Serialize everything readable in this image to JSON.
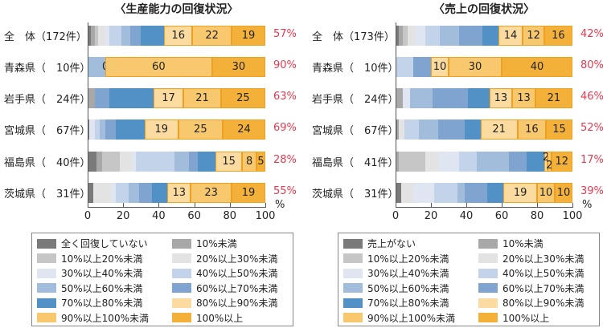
{
  "colors": [
    "#7a7a7a",
    "#a8a8a8",
    "#c6c6c6",
    "#e3e3e3",
    "#dfe6f2",
    "#c3d3e9",
    "#a2bddc",
    "#7fa4cf",
    "#5291c6",
    "#fbdba0",
    "#f8c86e",
    "#f4b13a"
  ],
  "accent_rate_color": "#e8384f",
  "charts": [
    {
      "type": "bar",
      "orientation": "horizontal-stacked",
      "title": "〈生産能力の回復状況〉",
      "xlim": [
        0,
        100
      ],
      "xticks": [
        "0",
        "20",
        "40",
        "60",
        "80",
        "100"
      ],
      "xunit": "%",
      "legend": [
        "全く回復していない",
        "10%未満",
        "10%以上20%未満",
        "20%以上30%未満",
        "30%以上40%未満",
        "40%以上50%未満",
        "50%以上60%未満",
        "60%以上70%未満",
        "70%以上80%未満",
        "80%以上90%未満",
        "90%以上100%未満",
        "100%以上"
      ],
      "rows": [
        {
          "label": "全　体（172件）",
          "values": [
            2,
            2,
            2,
            4,
            2,
            7,
            5,
            6,
            13,
            16,
            22,
            19
          ],
          "rate": "57%"
        },
        {
          "label": "青森県（　10件）",
          "values": [
            0,
            0,
            0,
            0,
            0,
            0,
            10,
            0,
            0,
            0,
            60,
            30
          ],
          "rate": "90%"
        },
        {
          "label": "岩手県（　24件）",
          "values": [
            0,
            4,
            0,
            0,
            0,
            0,
            0,
            8,
            25,
            17,
            21,
            25
          ],
          "rate": "63%"
        },
        {
          "label": "宮城県（　67件）",
          "values": [
            1,
            0,
            0,
            0,
            3,
            3,
            3,
            6,
            16,
            19,
            25,
            24
          ],
          "rate": "69%"
        },
        {
          "label": "福島県（　40件）",
          "values": [
            5,
            3,
            10,
            7,
            2,
            22,
            8,
            5,
            10,
            15,
            8,
            5
          ],
          "rate": "28%"
        },
        {
          "label": "茨城県（　31件）",
          "values": [
            3,
            0,
            0,
            10,
            3,
            7,
            6,
            7,
            9,
            13,
            23,
            19
          ],
          "rate": "55%"
        }
      ]
    },
    {
      "type": "bar",
      "orientation": "horizontal-stacked",
      "title": "〈売上の回復状況〉",
      "xlim": [
        0,
        100
      ],
      "xticks": [
        "0",
        "20",
        "40",
        "60",
        "80",
        "100"
      ],
      "xunit": "%",
      "legend": [
        "売上がない",
        "10%未満",
        "10%以上20%未満",
        "20%以上30%未満",
        "30%以上40%未満",
        "40%以上50%未満",
        "50%以上60%未満",
        "60%以上70%未満",
        "70%以上80%未満",
        "80%以上90%未満",
        "90%以上100%未満",
        "100%以上"
      ],
      "rows": [
        {
          "label": "全　体（173件）",
          "values": [
            2,
            2,
            3,
            4,
            6,
            8,
            11,
            13,
            9,
            14,
            12,
            16
          ],
          "rate": "42%"
        },
        {
          "label": "青森県（　10件）",
          "values": [
            0,
            0,
            0,
            0,
            0,
            10,
            0,
            10,
            0,
            10,
            30,
            40
          ],
          "rate": "80%"
        },
        {
          "label": "岩手県（　24件）",
          "values": [
            0,
            4,
            0,
            0,
            4,
            0,
            13,
            20,
            12,
            13,
            13,
            21
          ],
          "rate": "46%"
        },
        {
          "label": "宮城県（　67件）",
          "values": [
            1,
            1,
            0,
            3,
            0,
            8,
            11,
            15,
            9,
            21,
            16,
            15
          ],
          "rate": "52%"
        },
        {
          "label": "福島県（　41件）",
          "values": [
            0,
            2,
            15,
            7,
            12,
            10,
            18,
            10,
            10,
            2,
            2,
            12
          ],
          "rate": "17%"
        },
        {
          "label": "茨城県（　31件）",
          "values": [
            3,
            0,
            0,
            7,
            12,
            13,
            4,
            13,
            9,
            19,
            10,
            10
          ],
          "rate": "39%"
        }
      ]
    }
  ]
}
